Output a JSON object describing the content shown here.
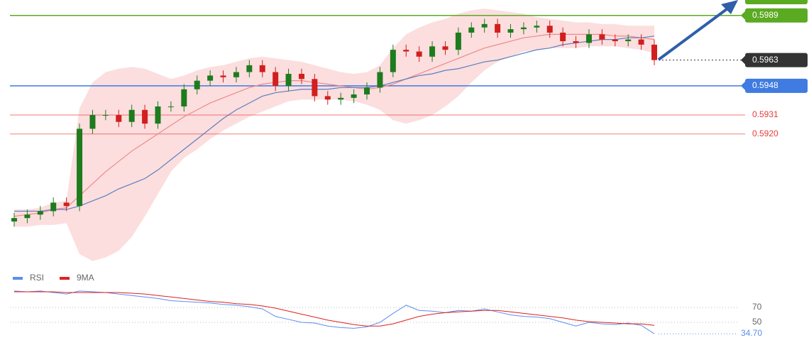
{
  "chart_data": [
    {
      "type": "candlestick",
      "up_color": "#1e7b1e",
      "down_color": "#d11f1f",
      "ylim": [
        0.5845,
        0.5998
      ],
      "open": [
        0.5869,
        0.5871,
        0.5873,
        0.5875,
        0.588,
        0.5878,
        0.5923,
        0.5931,
        0.5931,
        0.5927,
        0.5934,
        0.5926,
        0.5936,
        0.5936,
        0.5946,
        0.5951,
        0.5954,
        0.5953,
        0.5956,
        0.596,
        0.5956,
        0.5948,
        0.5955,
        0.5952,
        0.5942,
        0.594,
        0.5941,
        0.5943,
        0.5947,
        0.5956,
        0.5969,
        0.5968,
        0.5965,
        0.5971,
        0.5969,
        0.5979,
        0.5982,
        0.5984,
        0.5979,
        0.5981,
        0.5982,
        0.5983,
        0.5979,
        0.5974,
        0.5973,
        0.5978,
        0.5975,
        0.5974,
        0.5975,
        0.5972
      ],
      "high": [
        0.5874,
        0.5876,
        0.5878,
        0.5883,
        0.5883,
        0.5926,
        0.5934,
        0.5934,
        0.5934,
        0.5937,
        0.5937,
        0.5939,
        0.5939,
        0.5949,
        0.5954,
        0.5957,
        0.5957,
        0.5959,
        0.5963,
        0.5963,
        0.5959,
        0.5958,
        0.5958,
        0.5955,
        0.5945,
        0.5944,
        0.5946,
        0.595,
        0.5959,
        0.5972,
        0.5972,
        0.5971,
        0.5974,
        0.5974,
        0.5982,
        0.5985,
        0.5987,
        0.5987,
        0.5984,
        0.5985,
        0.5986,
        0.5986,
        0.5982,
        0.5977,
        0.5981,
        0.5981,
        0.5978,
        0.5978,
        0.5978,
        0.5975
      ],
      "low": [
        0.5866,
        0.5868,
        0.587,
        0.5872,
        0.5875,
        0.5875,
        0.592,
        0.5928,
        0.5924,
        0.5924,
        0.5923,
        0.5923,
        0.5933,
        0.5933,
        0.5943,
        0.5948,
        0.595,
        0.595,
        0.5953,
        0.5953,
        0.5945,
        0.5945,
        0.5949,
        0.5939,
        0.5937,
        0.5937,
        0.5938,
        0.594,
        0.5944,
        0.5953,
        0.5965,
        0.5962,
        0.5962,
        0.5966,
        0.5966,
        0.5976,
        0.5979,
        0.5976,
        0.5976,
        0.5978,
        0.5979,
        0.5976,
        0.5971,
        0.597,
        0.597,
        0.5972,
        0.5971,
        0.5971,
        0.5969,
        0.596
      ],
      "close": [
        0.5871,
        0.5873,
        0.5875,
        0.588,
        0.5878,
        0.5923,
        0.5931,
        0.5931,
        0.5927,
        0.5934,
        0.5926,
        0.5936,
        0.5936,
        0.5946,
        0.5951,
        0.5954,
        0.5953,
        0.5956,
        0.596,
        0.5956,
        0.5948,
        0.5955,
        0.5952,
        0.5942,
        0.594,
        0.5941,
        0.5943,
        0.5947,
        0.5956,
        0.5969,
        0.5968,
        0.5965,
        0.5971,
        0.5969,
        0.5979,
        0.5982,
        0.5984,
        0.5979,
        0.5981,
        0.5982,
        0.5983,
        0.5979,
        0.5974,
        0.5973,
        0.5978,
        0.5975,
        0.5974,
        0.5975,
        0.5972,
        0.5963
      ],
      "band": {
        "color": "#fbd3d3",
        "upper": [
          0.5876,
          0.5876,
          0.5877,
          0.588,
          0.5881,
          0.5935,
          0.595,
          0.5956,
          0.5958,
          0.5959,
          0.5958,
          0.5955,
          0.5952,
          0.5954,
          0.5957,
          0.5959,
          0.596,
          0.5962,
          0.5964,
          0.5965,
          0.5964,
          0.5963,
          0.5962,
          0.596,
          0.5958,
          0.5956,
          0.5955,
          0.5956,
          0.596,
          0.597,
          0.5978,
          0.5982,
          0.5985,
          0.5987,
          0.599,
          0.5992,
          0.5993,
          0.5992,
          0.5991,
          0.599,
          0.5988,
          0.5987,
          0.5986,
          0.5985,
          0.5985,
          0.5984,
          0.5984,
          0.5983,
          0.5983,
          0.5983
        ],
        "lower": [
          0.5866,
          0.5866,
          0.5867,
          0.5867,
          0.5868,
          0.585,
          0.5846,
          0.5848,
          0.5852,
          0.586,
          0.5872,
          0.5885,
          0.5898,
          0.5906,
          0.5911,
          0.5917,
          0.5922,
          0.5926,
          0.593,
          0.5933,
          0.5936,
          0.5939,
          0.594,
          0.594,
          0.594,
          0.594,
          0.5939,
          0.5937,
          0.5934,
          0.5928,
          0.5926,
          0.5928,
          0.5931,
          0.5936,
          0.5942,
          0.595,
          0.5957,
          0.5962,
          0.5965,
          0.5968,
          0.5969,
          0.597,
          0.597,
          0.597,
          0.5971,
          0.5971,
          0.5971,
          0.597,
          0.5969,
          0.5967
        ]
      },
      "lines": [
        {
          "color": "#ee8a8a",
          "values": [
            0.5872,
            0.5873,
            0.5874,
            0.5876,
            0.5877,
            0.5884,
            0.5891,
            0.5898,
            0.5904,
            0.591,
            0.5915,
            0.592,
            0.5925,
            0.593,
            0.5934,
            0.5938,
            0.5941,
            0.5944,
            0.5947,
            0.5949,
            0.595,
            0.5951,
            0.5951,
            0.595,
            0.5949,
            0.5948,
            0.5947,
            0.5946,
            0.5947,
            0.5949,
            0.5952,
            0.5955,
            0.5958,
            0.5961,
            0.5964,
            0.5967,
            0.597,
            0.5972,
            0.5974,
            0.5976,
            0.5977,
            0.5978,
            0.5978,
            0.5978,
            0.5978,
            0.5978,
            0.5977,
            0.5977,
            0.5976,
            0.5975
          ]
        },
        {
          "color": "#5b7fc0",
          "values": [
            0.5875,
            0.5875,
            0.5875,
            0.5876,
            0.5876,
            0.5878,
            0.5881,
            0.5884,
            0.5888,
            0.5891,
            0.5894,
            0.5899,
            0.5905,
            0.5911,
            0.5917,
            0.5923,
            0.5929,
            0.5934,
            0.5938,
            0.5942,
            0.5944,
            0.5945,
            0.5946,
            0.5946,
            0.5946,
            0.5947,
            0.5947,
            0.5947,
            0.5948,
            0.595,
            0.5952,
            0.5954,
            0.5955,
            0.5957,
            0.5958,
            0.596,
            0.5962,
            0.5963,
            0.5965,
            0.5967,
            0.5969,
            0.597,
            0.5972,
            0.5973,
            0.5974,
            0.5975,
            0.5975,
            0.5976,
            0.5976,
            0.5977
          ]
        }
      ],
      "levels": [
        {
          "value": 0.5989,
          "label": "0.5989",
          "color": "#5aaa22",
          "style": "solid",
          "box": true
        },
        {
          "value": 0.5963,
          "label": "0.5963",
          "color": "#333333",
          "style": "dotted",
          "box": true
        },
        {
          "value": 0.5948,
          "label": "0.5948",
          "color": "#3f7be0",
          "style": "solid",
          "box": true
        },
        {
          "value": 0.5931,
          "label": "0.5931",
          "color": "#e83a3a",
          "style": "solid",
          "box": false
        },
        {
          "value": 0.592,
          "label": "0.5920",
          "color": "#e83a3a",
          "style": "solid",
          "box": false
        }
      ]
    },
    {
      "type": "line",
      "ylim": [
        20,
        100
      ],
      "yticks": [
        50,
        70
      ],
      "grid": true,
      "series": [
        {
          "name": "RSI",
          "color": "#5b8def",
          "values": [
            92,
            91,
            92,
            90,
            88,
            92,
            91,
            90,
            88,
            86,
            84,
            82,
            79,
            78,
            77,
            76,
            74,
            73,
            71,
            68,
            58,
            54,
            50,
            49,
            45,
            43,
            42,
            44,
            50,
            62,
            73,
            66,
            65,
            63,
            66,
            65,
            68,
            64,
            60,
            58,
            57,
            55,
            50,
            45,
            50,
            48,
            47,
            49,
            46,
            34.7
          ]
        },
        {
          "name": "9MA",
          "color": "#e02020",
          "values": [
            91,
            91,
            91,
            91,
            90,
            90,
            90,
            90,
            90,
            89,
            88,
            86,
            84,
            82,
            80,
            78,
            77,
            75,
            74,
            72,
            69,
            65,
            61,
            57,
            53,
            50,
            47,
            45,
            45,
            48,
            53,
            58,
            61,
            63,
            64,
            65,
            66,
            66,
            64,
            62,
            60,
            58,
            56,
            53,
            51,
            50,
            49,
            48,
            48,
            46
          ]
        }
      ],
      "current": {
        "value": 34.7,
        "label": "34.70",
        "color": "#5b8def"
      }
    }
  ]
}
